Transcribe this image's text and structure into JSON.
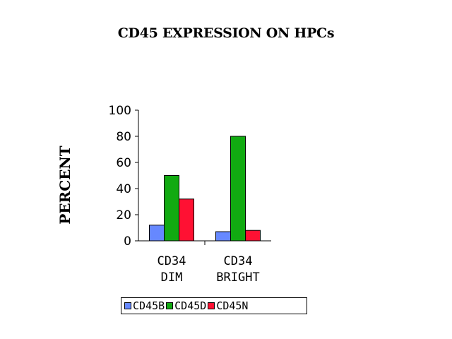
{
  "chart_data": {
    "type": "bar",
    "title": "CD45 EXPRESSION ON HPCs",
    "xlabel": "",
    "ylabel": "PERCENT",
    "categories": [
      [
        "CD34",
        "DIM"
      ],
      [
        "CD34",
        "BRIGHT"
      ]
    ],
    "series": [
      {
        "name": "CD45B",
        "color": "#6688ff",
        "values": [
          12,
          7
        ]
      },
      {
        "name": "CD45D",
        "color": "#11aa11",
        "values": [
          50,
          80
        ]
      },
      {
        "name": "CD45N",
        "color": "#ff1133",
        "values": [
          32,
          8
        ]
      }
    ],
    "yticks": [
      "0",
      "20",
      "40",
      "60",
      "80",
      "100"
    ],
    "ylim": [
      0,
      100
    ],
    "grid": false,
    "legend": "bottom"
  }
}
